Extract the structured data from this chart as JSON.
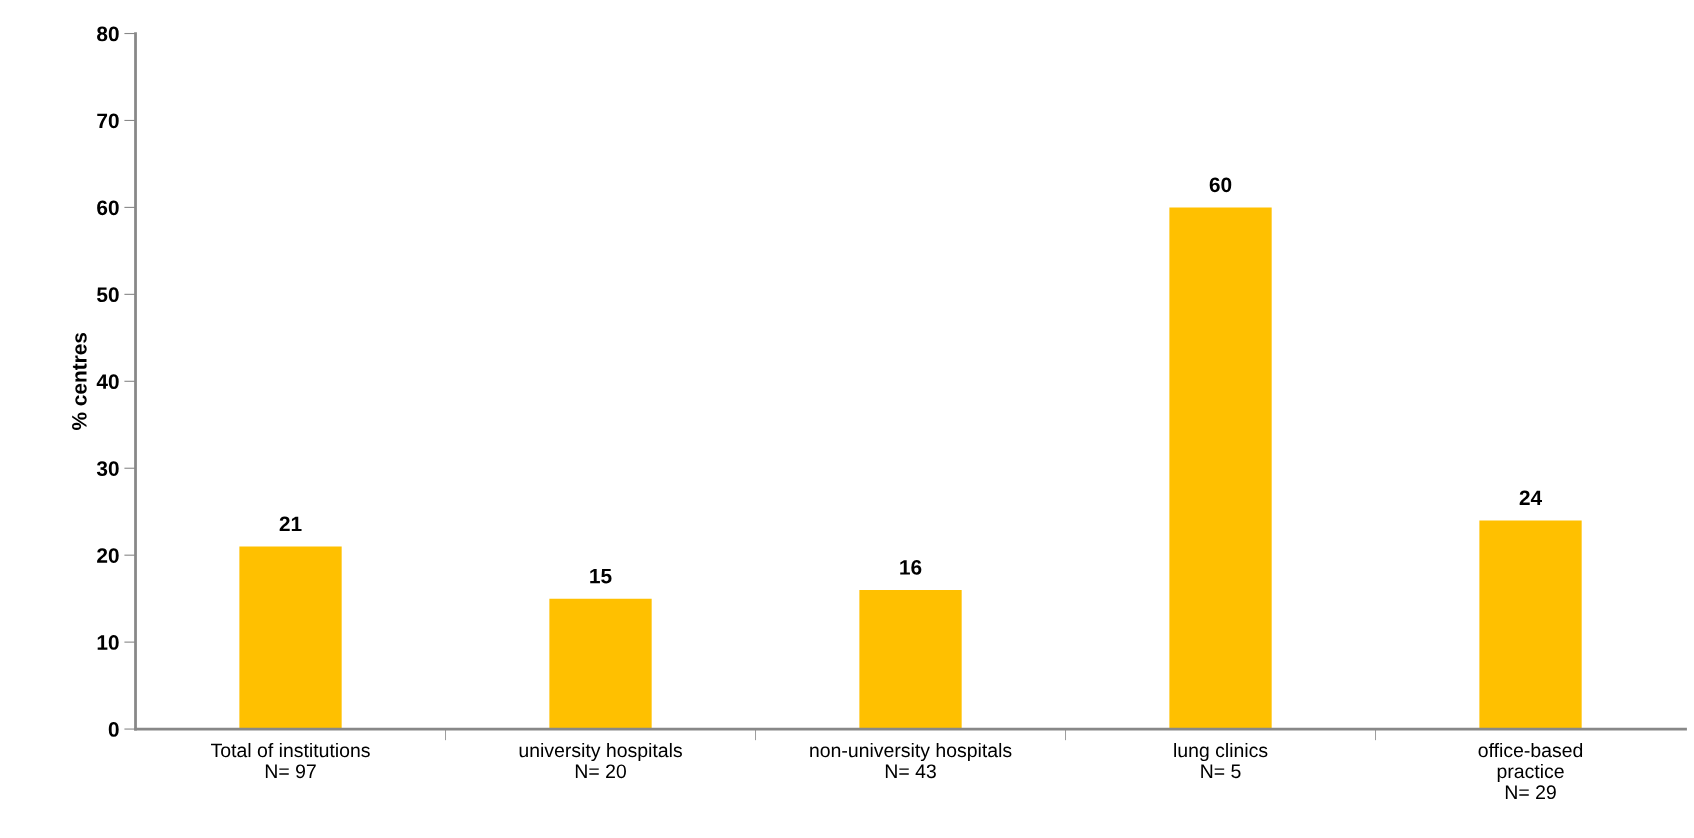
{
  "chart_data": {
    "type": "bar",
    "ylabel": "% centres",
    "categories": [
      "Total of institutions\nN= 97",
      "university hospitals\nN= 20",
      "non-university hospitals\nN= 43",
      "lung clinics\nN= 5",
      "office-based\npractice\nN= 29"
    ],
    "values": [
      21,
      15,
      16,
      60,
      24
    ],
    "color": "#ffc000",
    "ylim": [
      0,
      80
    ],
    "yticks": [
      0,
      10,
      20,
      30,
      40,
      50,
      60,
      70,
      80
    ],
    "grid": false,
    "data_labels": true
  }
}
